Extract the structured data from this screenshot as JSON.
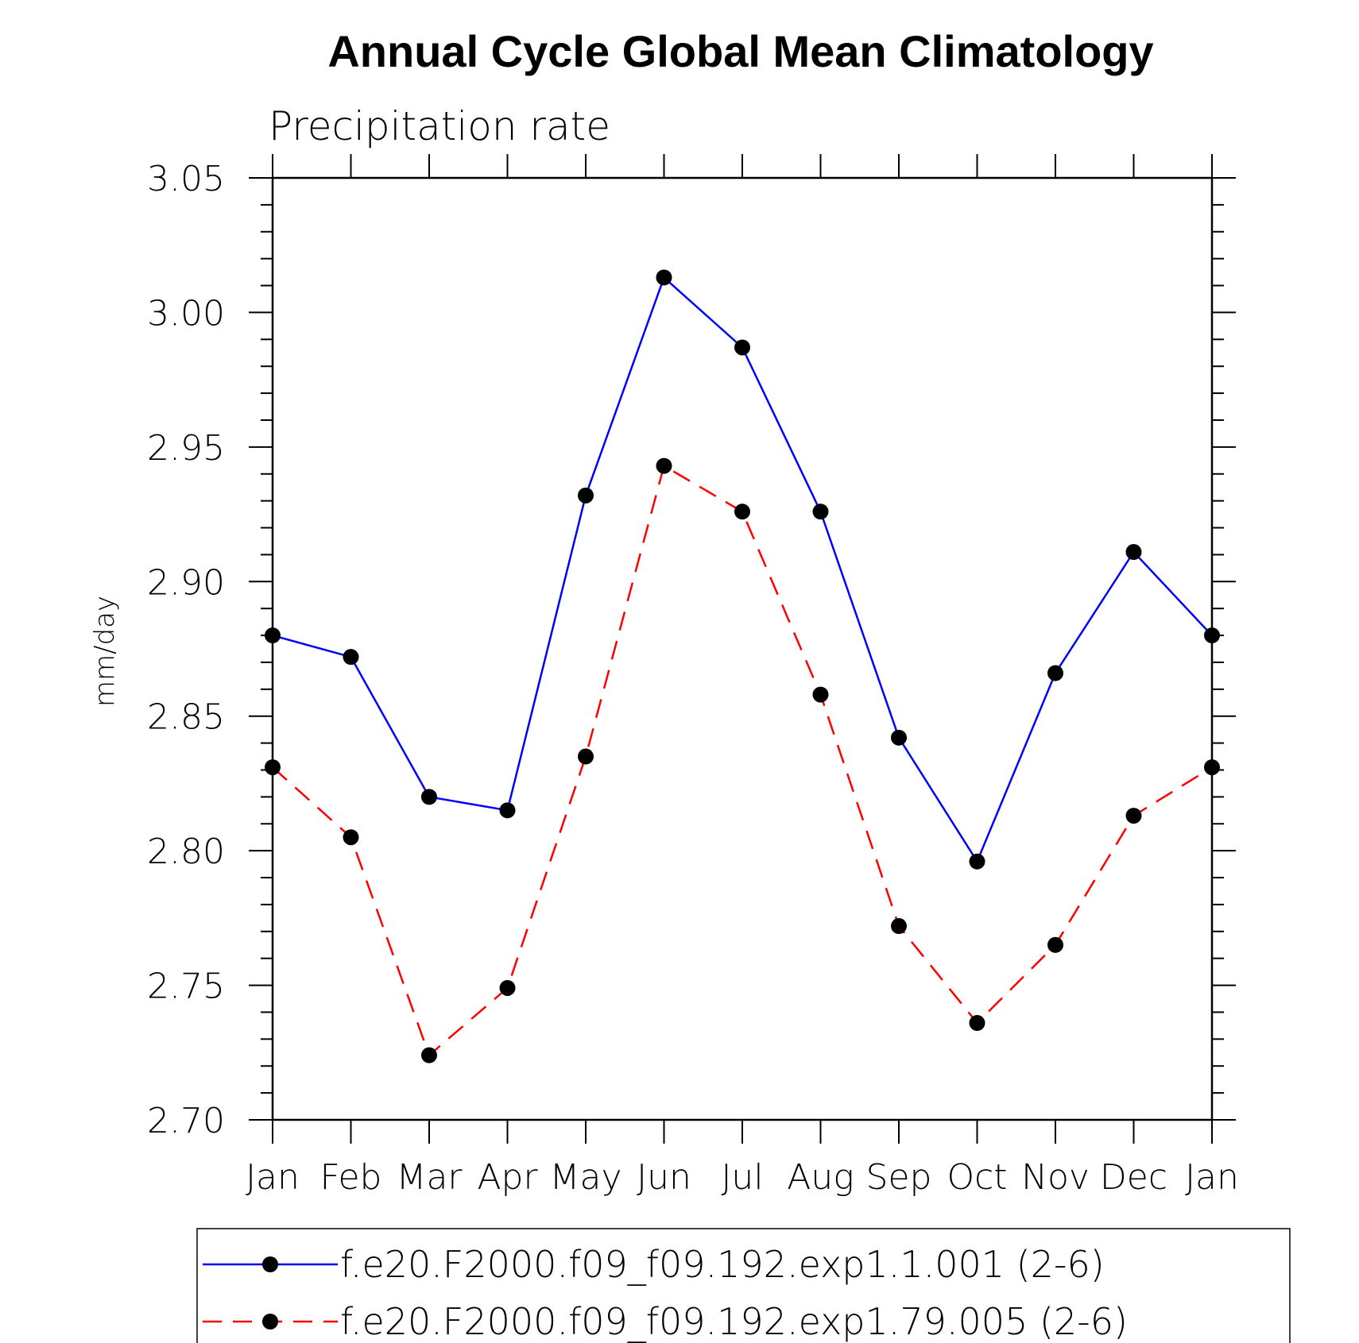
{
  "chart_data": {
    "type": "line",
    "title": "Annual Cycle Global Mean Climatology",
    "subtitle": "Precipitation rate",
    "xlabel": "",
    "ylabel": "mm/day",
    "ylim": [
      2.7,
      3.05
    ],
    "yticks": [
      "2.70",
      "2.75",
      "2.80",
      "2.85",
      "2.90",
      "2.95",
      "3.00",
      "3.05"
    ],
    "categories": [
      "Jan",
      "Feb",
      "Mar",
      "Apr",
      "May",
      "Jun",
      "Jul",
      "Aug",
      "Sep",
      "Oct",
      "Nov",
      "Dec",
      "Jan"
    ],
    "grid": false,
    "legend_position": "bottom",
    "series": [
      {
        "name": "f.e20.F2000.f09_f09.192.exp1.1.001 (2-6)",
        "color": "#0000ff",
        "line_style": "solid",
        "marker": "filled-circle-black",
        "values": [
          2.88,
          2.872,
          2.82,
          2.815,
          2.932,
          3.013,
          2.987,
          2.926,
          2.842,
          2.796,
          2.866,
          2.911,
          2.88
        ]
      },
      {
        "name": "f.e20.F2000.f09_f09.192.exp1.79.005 (2-6)",
        "color": "#ff0000",
        "line_style": "dashed",
        "marker": "filled-circle-black",
        "values": [
          2.831,
          2.805,
          2.724,
          2.749,
          2.835,
          2.943,
          2.926,
          2.858,
          2.772,
          2.736,
          2.765,
          2.813,
          2.831
        ]
      }
    ]
  }
}
